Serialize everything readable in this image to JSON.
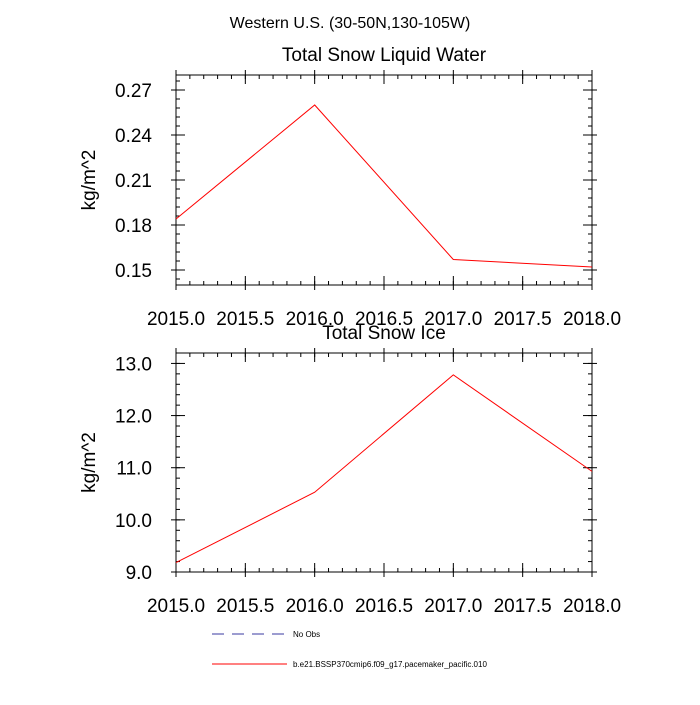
{
  "main_title": "Western U.S. (30-50N,130-105W)",
  "chart_data": [
    {
      "type": "line",
      "title": "Total Snow Liquid Water",
      "xlabel": "",
      "ylabel": "kg/m^2",
      "x": [
        2015.0,
        2016.0,
        2017.0,
        2018.0
      ],
      "xlim": [
        2015.0,
        2018.0
      ],
      "xticks": [
        2015.0,
        2015.5,
        2016.0,
        2016.5,
        2017.0,
        2017.5,
        2018.0
      ],
      "xtick_labels": [
        "2015.0",
        "2015.5",
        "2016.0",
        "2016.5",
        "2017.0",
        "2017.5",
        "2018.0"
      ],
      "ylim": [
        0.14,
        0.28
      ],
      "yticks": [
        0.15,
        0.18,
        0.21,
        0.24,
        0.27
      ],
      "ytick_labels": [
        "0.15",
        "0.18",
        "0.21",
        "0.24",
        "0.27"
      ],
      "series": [
        {
          "name": "b.e21.BSSP370cmip6.f09_g17.pacemaker_pacific.010",
          "color": "#ff0000",
          "values": [
            0.184,
            0.26,
            0.157,
            0.152
          ]
        }
      ]
    },
    {
      "type": "line",
      "title": "Total Snow Ice",
      "xlabel": "",
      "ylabel": "kg/m^2",
      "x": [
        2015.0,
        2016.0,
        2017.0,
        2018.0
      ],
      "xlim": [
        2015.0,
        2018.0
      ],
      "xticks": [
        2015.0,
        2015.5,
        2016.0,
        2016.5,
        2017.0,
        2017.5,
        2018.0
      ],
      "xtick_labels": [
        "2015.0",
        "2015.5",
        "2016.0",
        "2016.5",
        "2017.0",
        "2017.5",
        "2018.0"
      ],
      "ylim": [
        9.0,
        13.2
      ],
      "yticks": [
        9.0,
        10.0,
        11.0,
        12.0,
        13.0
      ],
      "ytick_labels": [
        "9.0",
        "10.0",
        "11.0",
        "12.0",
        "13.0"
      ],
      "series": [
        {
          "name": "b.e21.BSSP370cmip6.f09_g17.pacemaker_pacific.010",
          "color": "#ff0000",
          "values": [
            9.18,
            10.53,
            12.78,
            10.93
          ]
        }
      ]
    }
  ],
  "legend": [
    {
      "label": "No Obs",
      "color": "#3a3aa0",
      "style": "dashed"
    },
    {
      "label": "b.e21.BSSP370cmip6.f09_g17.pacemaker_pacific.010",
      "color": "#ff0000",
      "style": "solid"
    }
  ]
}
